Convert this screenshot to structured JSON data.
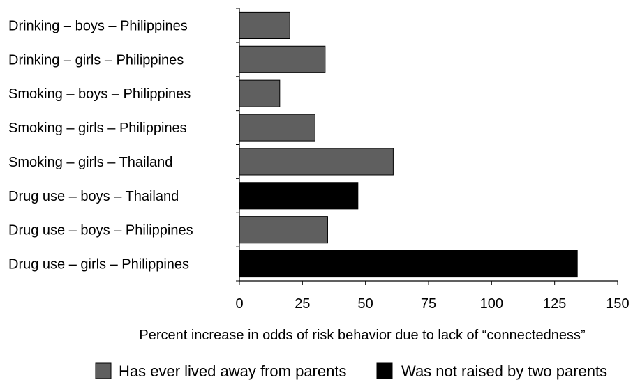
{
  "chart_data": {
    "type": "bar",
    "orientation": "horizontal",
    "categories": [
      "Drinking – boys – Philippines",
      "Drinking – girls – Philippines",
      "Smoking – boys – Philippines",
      "Smoking – girls – Philippines",
      "Smoking – girls – Thailand",
      "Drug use – boys – Thailand",
      "Drug use – boys – Philippines",
      "Drug use – girls – Philippines"
    ],
    "values": [
      20,
      34,
      16,
      30,
      61,
      47,
      35,
      134
    ],
    "series_index": [
      0,
      0,
      0,
      0,
      0,
      1,
      0,
      1
    ],
    "series": [
      {
        "name": "Has ever lived away from parents",
        "color": "#5f5f5f"
      },
      {
        "name": "Was not raised by two parents",
        "color": "#000000"
      }
    ],
    "xlabel": "Percent increase in odds of risk behavior due to lack of “connectedness”",
    "ylabel": "",
    "xlim": [
      0,
      150
    ],
    "xticks": [
      0,
      25,
      50,
      75,
      100,
      125,
      150
    ],
    "grid": false,
    "legend_position": "bottom"
  }
}
